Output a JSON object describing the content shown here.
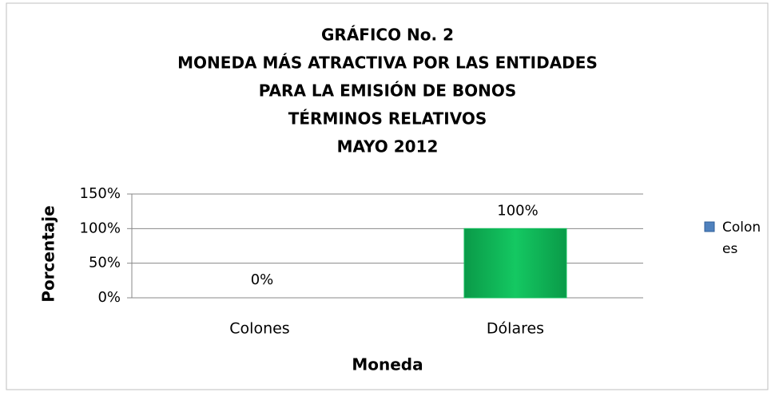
{
  "chart_data": {
    "type": "bar",
    "title": [
      "GRÁFICO No. 2",
      "MONEDA MÁS ATRACTIVA POR LAS ENTIDADES",
      "PARA LA EMISIÓN DE BONOS",
      "TÉRMINOS RELATIVOS",
      "MAYO 2012"
    ],
    "x_label": "Moneda",
    "y_label": "Porcentaje",
    "categories": [
      "Colones",
      "Dólares"
    ],
    "series": [
      {
        "name": "Colones",
        "color": "#4f81bd",
        "values": [
          0,
          100
        ],
        "value_labels": [
          "0%",
          "100%"
        ]
      }
    ],
    "bar_color": "#12bf5c",
    "ylim": [
      0,
      150
    ],
    "yticks": [
      {
        "value": 0,
        "label": "0%"
      },
      {
        "value": 50,
        "label": "50%"
      },
      {
        "value": 100,
        "label": "100%"
      },
      {
        "value": 150,
        "label": "150%"
      }
    ],
    "grid": true,
    "legend": "right"
  }
}
